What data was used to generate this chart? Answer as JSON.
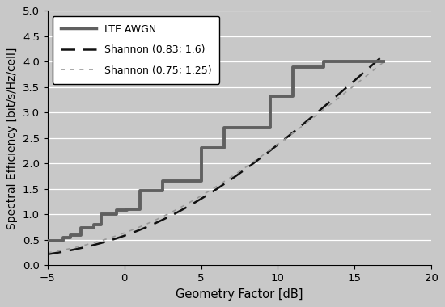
{
  "title": "",
  "xlabel": "Geometry Factor [dB]",
  "ylabel": "Spectral Efficiency [bit/s/Hz/cell]",
  "xlim": [
    -5,
    20
  ],
  "ylim": [
    0,
    5
  ],
  "xticks": [
    -5,
    0,
    5,
    10,
    15,
    20
  ],
  "yticks": [
    0,
    0.5,
    1.0,
    1.5,
    2.0,
    2.5,
    3.0,
    3.5,
    4.0,
    4.5,
    5.0
  ],
  "fig_bg_color": "#c8c8c8",
  "plot_bg_color": "#c8c8c8",
  "lte_color": "#606060",
  "shannon1_color": "#111111",
  "shannon2_color": "#999999",
  "legend_labels": [
    "LTE AWGN",
    "Shannon (0.83; 1.6)",
    "Shannon (0.75; 1.25)"
  ],
  "shannon1_params": [
    0.83,
    1.6
  ],
  "shannon2_params": [
    0.75,
    1.25
  ],
  "lte_steps_x": [
    -5.0,
    -4.5,
    -4.0,
    -3.5,
    -3.0,
    -2.8,
    -2.5,
    -2.2,
    -2.0,
    -1.8,
    -1.5,
    -1.2,
    -0.8,
    -0.5,
    -0.2,
    0.2,
    0.5,
    0.8,
    1.0,
    1.5,
    2.0,
    2.5,
    3.0,
    3.5,
    4.0,
    4.5,
    5.0,
    5.5,
    6.0,
    6.5,
    7.0,
    7.5,
    8.0,
    8.5,
    9.0,
    9.5,
    10.0,
    10.5,
    11.0,
    11.5,
    12.0,
    12.5,
    13.0,
    13.5,
    14.0,
    14.5,
    15.0,
    15.5,
    16.0,
    17.0
  ],
  "lte_steps_y": [
    0.49,
    0.49,
    0.55,
    0.6,
    0.6,
    0.74,
    0.74,
    0.74,
    0.8,
    0.8,
    1.0,
    1.0,
    1.0,
    1.08,
    1.08,
    1.1,
    1.1,
    1.1,
    1.47,
    1.47,
    1.47,
    1.65,
    1.65,
    1.65,
    1.65,
    1.65,
    2.3,
    2.3,
    2.3,
    2.7,
    2.7,
    2.7,
    2.7,
    2.7,
    2.7,
    3.32,
    3.32,
    3.32,
    3.9,
    3.9,
    3.9,
    3.9,
    4.0,
    4.0,
    4.0,
    4.0,
    4.0,
    4.0,
    4.0,
    4.0
  ]
}
